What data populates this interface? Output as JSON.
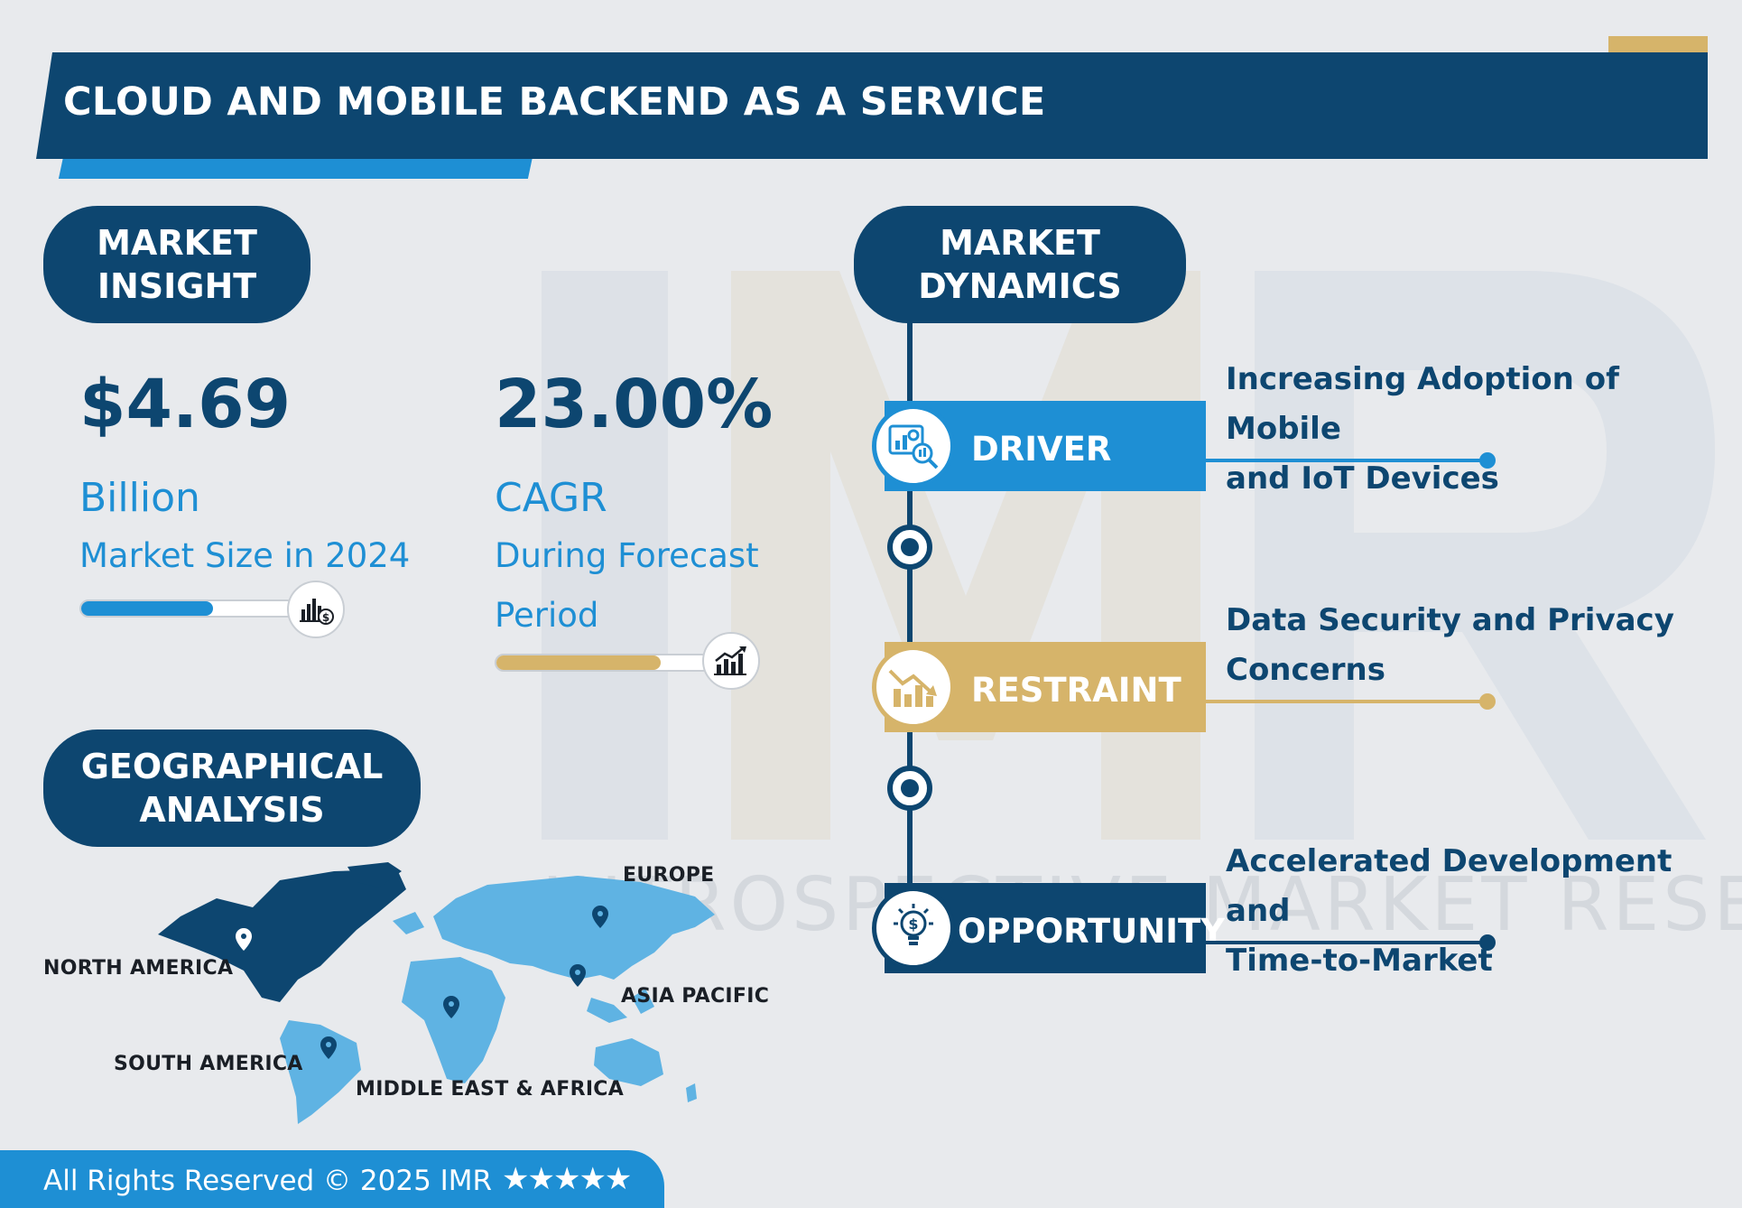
{
  "header": {
    "title": "CLOUD AND MOBILE BACKEND AS A SERVICE"
  },
  "insight": {
    "heading_line1": "MARKET",
    "heading_line2": "INSIGHT",
    "market_size": {
      "value": "$4.69",
      "unit": "Billion",
      "caption": "Market Size in 2024",
      "bar_fill": 0.62,
      "icon": "chart-dollar-icon"
    },
    "cagr": {
      "value": "23.00%",
      "unit": "CAGR",
      "caption_line1": "During Forecast",
      "caption_line2": "Period",
      "bar_fill": 0.77,
      "icon": "growth-chart-icon"
    }
  },
  "geo": {
    "heading_line1": "GEOGRAPHICAL",
    "heading_line2": "ANALYSIS",
    "regions": [
      "NORTH AMERICA",
      "EUROPE",
      "ASIA PACIFIC",
      "SOUTH AMERICA",
      "MIDDLE EAST & AFRICA"
    ]
  },
  "dynamics": {
    "heading_line1": "MARKET",
    "heading_line2": "DYNAMICS",
    "items": [
      {
        "label": "DRIVER",
        "desc_line1": "Increasing Adoption of Mobile",
        "desc_line2": "and IoT Devices",
        "color": "#1e8fd4",
        "icon": "analytics-icon"
      },
      {
        "label": "RESTRAINT",
        "desc_line1": "Data Security and Privacy",
        "desc_line2": "Concerns",
        "color": "#d6b46a",
        "icon": "declining-chart-icon"
      },
      {
        "label": "OPPORTUNITY",
        "desc_line1": "Accelerated Development and",
        "desc_line2": "Time-to-Market",
        "color": "#0d4670",
        "icon": "idea-bulb-icon"
      }
    ]
  },
  "watermark": {
    "text": "INTROSPECTIVE MARKET RESEARCH"
  },
  "footer": {
    "text": "All Rights Reserved © 2025 IMR",
    "stars": "★★★★★"
  },
  "colors": {
    "navy": "#0d4670",
    "blue": "#1e8fd4",
    "gold": "#d6b46a",
    "background": "#e8eaed"
  }
}
